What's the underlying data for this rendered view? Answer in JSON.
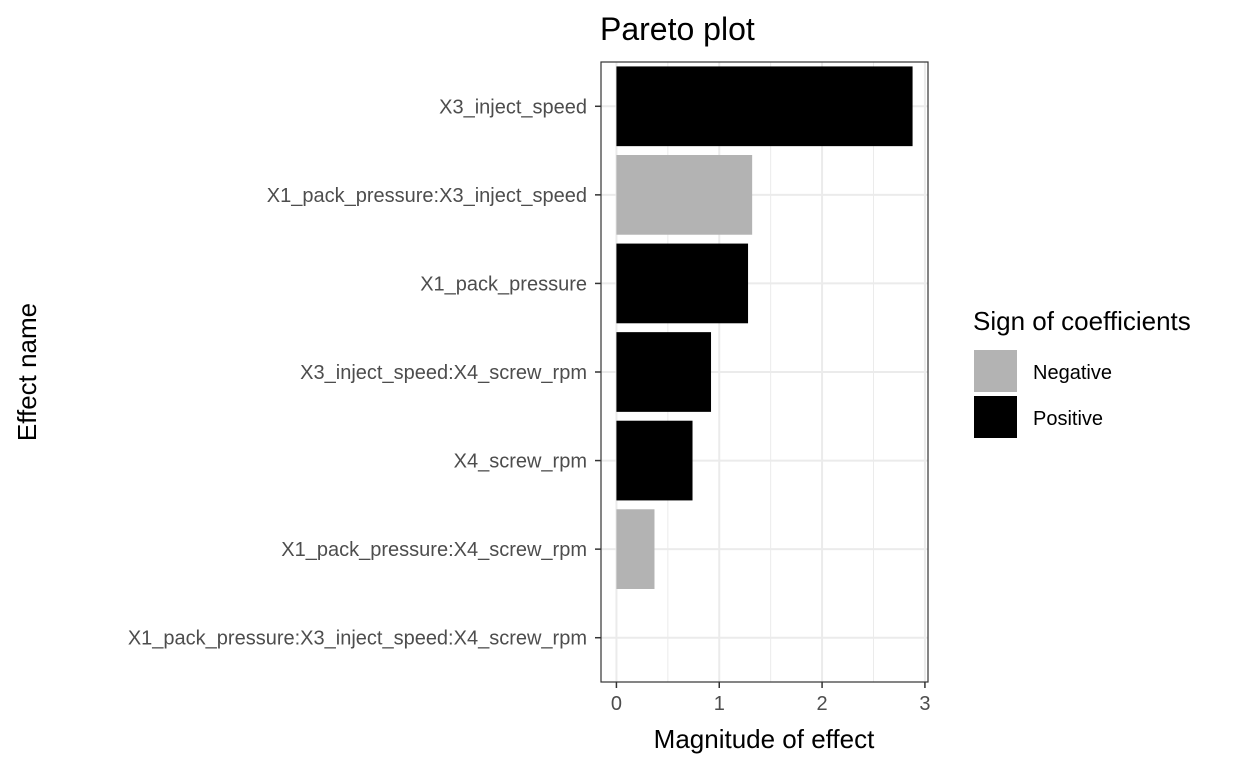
{
  "chart_data": {
    "type": "bar",
    "orientation": "horizontal",
    "title": "Pareto plot",
    "xlabel": "Magnitude of effect",
    "ylabel": "Effect name",
    "xlim": [
      -0.15,
      3.03
    ],
    "xticks": [
      0,
      1,
      2,
      3
    ],
    "grid": true,
    "categories": [
      "X3_inject_speed",
      "X1_pack_pressure:X3_inject_speed",
      "X1_pack_pressure",
      "X3_inject_speed:X4_screw_rpm",
      "X4_screw_rpm",
      "X1_pack_pressure:X4_screw_rpm",
      "X1_pack_pressure:X3_inject_speed:X4_screw_rpm"
    ],
    "values": [
      2.88,
      1.32,
      1.28,
      0.92,
      0.74,
      0.37,
      0.0
    ],
    "signs": [
      "Positive",
      "Negative",
      "Positive",
      "Positive",
      "Positive",
      "Negative",
      "Positive"
    ],
    "legend": {
      "title": "Sign of coefficients",
      "position": "right",
      "entries": [
        {
          "label": "Negative",
          "color": "#b3b3b3"
        },
        {
          "label": "Positive",
          "color": "#000000"
        }
      ]
    }
  }
}
